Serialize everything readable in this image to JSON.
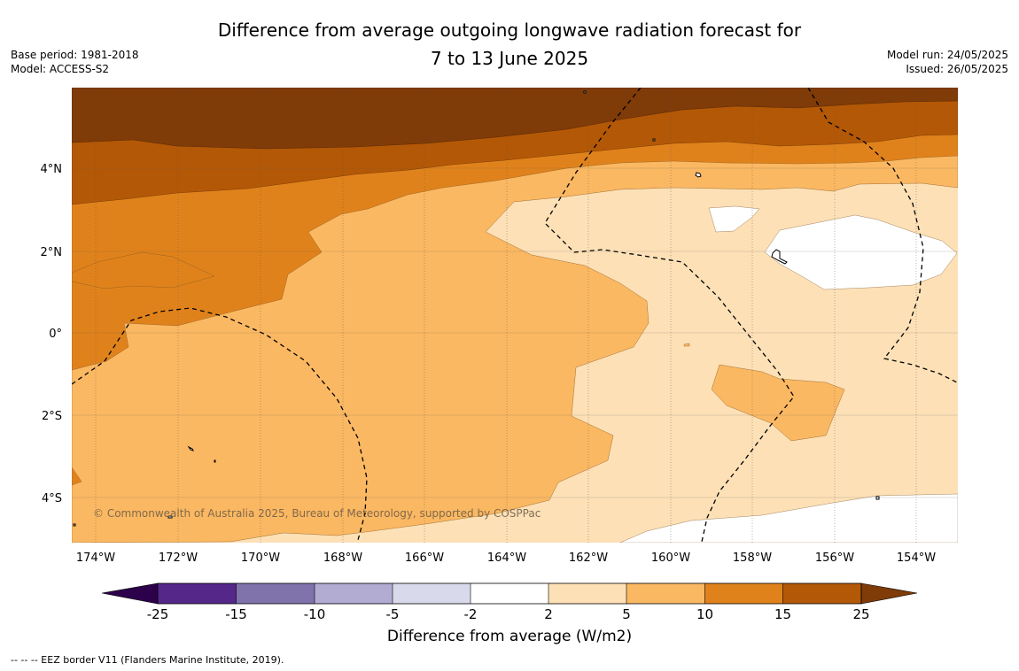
{
  "header": {
    "title_line1": "Difference from average outgoing longwave radiation forecast for",
    "title_line2": "7 to 13 June 2025",
    "base_period": "Base period: 1981-2018",
    "model": "Model: ACCESS-S2",
    "model_run": "Model run: 24/05/2025",
    "issued": "Issued: 26/05/2025"
  },
  "map": {
    "lon_labels": [
      "174°W",
      "172°W",
      "170°W",
      "168°W",
      "166°W",
      "164°W",
      "162°W",
      "160°W",
      "158°W",
      "156°W",
      "154°W"
    ],
    "lat_labels": [
      "4°N",
      "2°N",
      "0°",
      "2°S",
      "4°S"
    ],
    "copyright": "© Commonwealth of Australia 2025, Bureau of Meteorology, supported by COSPPac",
    "colors": {
      "c_2_5": "#fde0b6",
      "c_5_10": "#fbb862",
      "c_10_15": "#e0821b",
      "c_15_25": "#b35806",
      "c_25_plus": "#7f3b08",
      "land_white": "#ffffff"
    }
  },
  "colorbar": {
    "title": "Difference from average (W/m2)",
    "ticks": [
      "-25",
      "-15",
      "-10",
      "-5",
      "-2",
      "2",
      "5",
      "10",
      "15",
      "25"
    ],
    "colors": [
      "#542788",
      "#8073ac",
      "#b2abd2",
      "#d8daeb",
      "#ffffff",
      "#fde0b6",
      "#fbb862",
      "#e0821b",
      "#b35806"
    ],
    "under_color": "#2d004b",
    "over_color": "#7f3b08"
  },
  "footer": {
    "legend_text": "--  --  -- EEZ border V11 (Flanders Marine Institute, 2019)."
  }
}
